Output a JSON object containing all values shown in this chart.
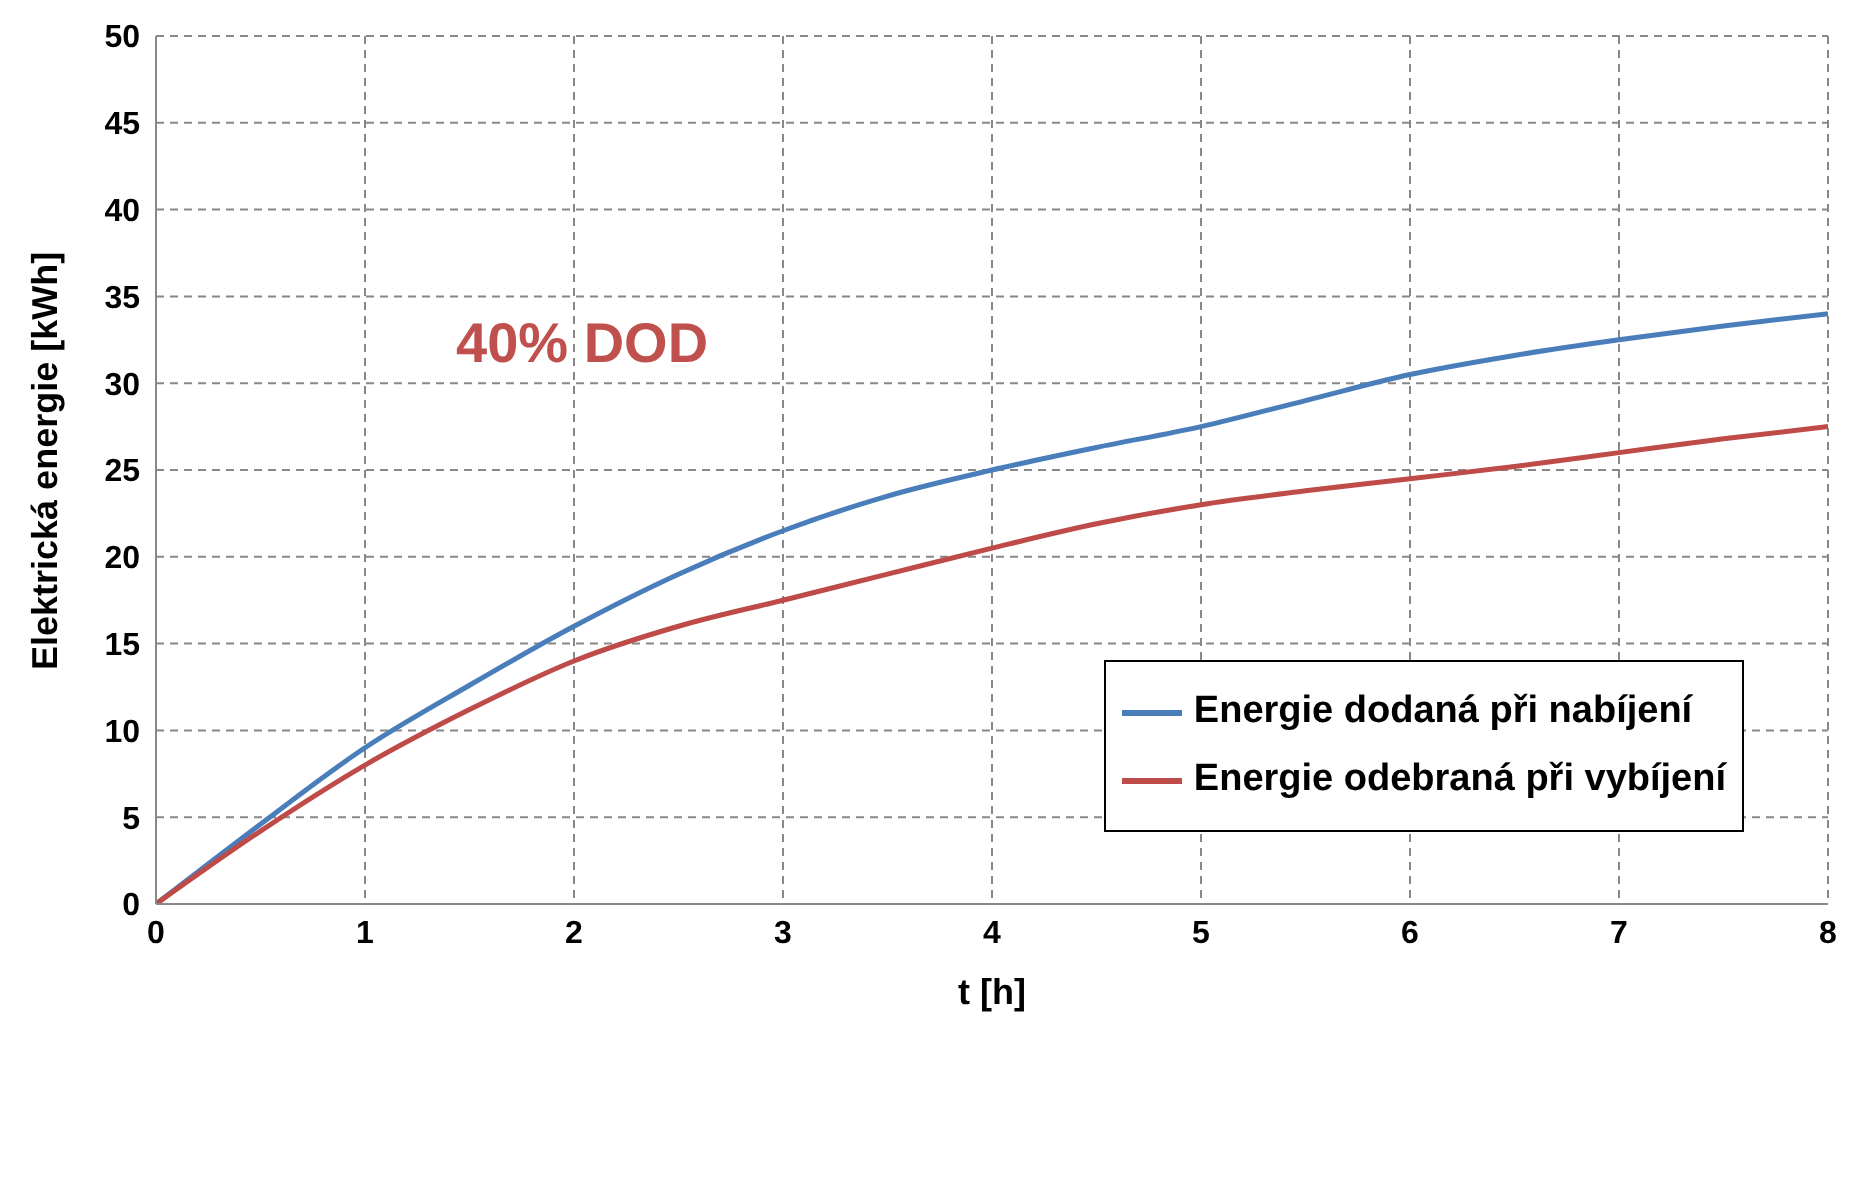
{
  "chart_data": {
    "type": "line",
    "xlabel": "t [h]",
    "ylabel": "Elektrická energie [kWh]",
    "annotations": [
      "40% DOD"
    ],
    "x": [
      0,
      0.5,
      1,
      1.5,
      2,
      2.5,
      3,
      3.5,
      4,
      4.5,
      5,
      5.5,
      6,
      6.5,
      7,
      7.5,
      8
    ],
    "series": [
      {
        "name": "Energie dodaná při nabíjení",
        "color": "#4a7ebb",
        "values": [
          0,
          4.6,
          9,
          12.6,
          16,
          19,
          21.5,
          23.5,
          25,
          26.3,
          27.5,
          29,
          30.5,
          31.6,
          32.5,
          33.3,
          34
        ]
      },
      {
        "name": "Energie odebraná při vybíjení",
        "color": "#be4b48",
        "values": [
          0,
          4.2,
          8,
          11.2,
          14,
          16,
          17.5,
          19,
          20.5,
          21.9,
          23,
          23.8,
          24.5,
          25.2,
          26,
          26.8,
          27.5
        ]
      }
    ],
    "xlim": [
      0,
      8
    ],
    "xticks": [
      0,
      1,
      2,
      3,
      4,
      5,
      6,
      7,
      8
    ],
    "ylim": [
      0,
      50
    ],
    "yticks": [
      0,
      5,
      10,
      15,
      20,
      25,
      30,
      35,
      40,
      45,
      50
    ],
    "grid": true,
    "legend": "right",
    "marker": "none",
    "line_style": "solid"
  }
}
